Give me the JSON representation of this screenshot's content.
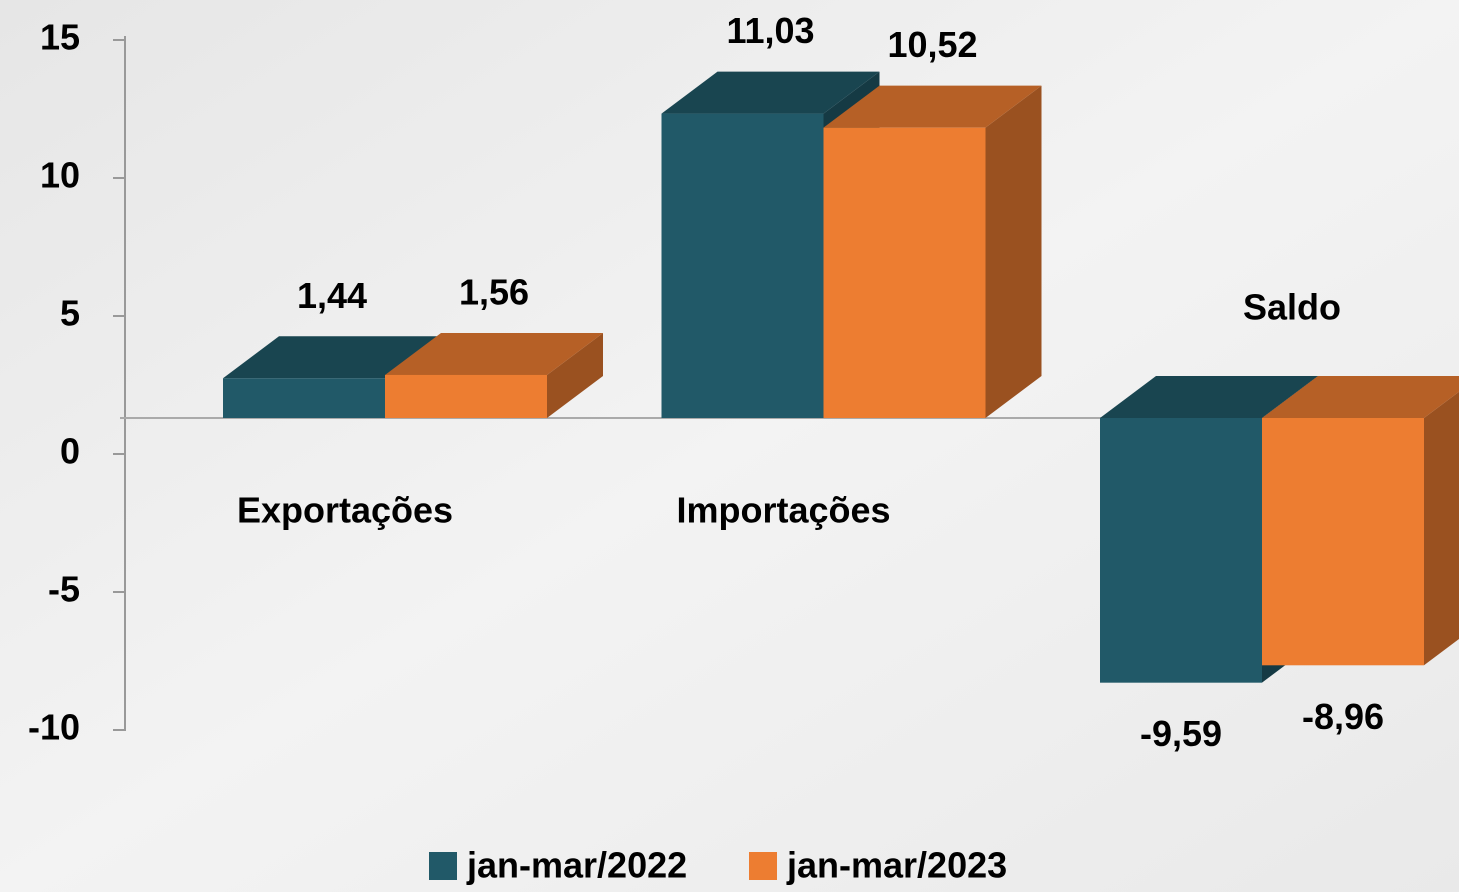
{
  "chart_data": {
    "type": "bar3d",
    "categories": [
      "Exportações",
      "Importações",
      "Saldo"
    ],
    "series": [
      {
        "name": "jan-mar/2022",
        "color": "#215968",
        "values": [
          1.44,
          11.03,
          -9.59
        ],
        "value_labels": [
          "1,44",
          "11,03",
          "-9,59"
        ]
      },
      {
        "name": "jan-mar/2023",
        "color": "#ed7d31",
        "values": [
          1.56,
          10.52,
          -8.96
        ],
        "value_labels": [
          "1,56",
          "10,52",
          "-8,96"
        ]
      }
    ],
    "ylim": [
      -10,
      15
    ],
    "yticks": [
      -10,
      -5,
      0,
      5,
      10,
      15
    ],
    "legend": "bottom"
  }
}
